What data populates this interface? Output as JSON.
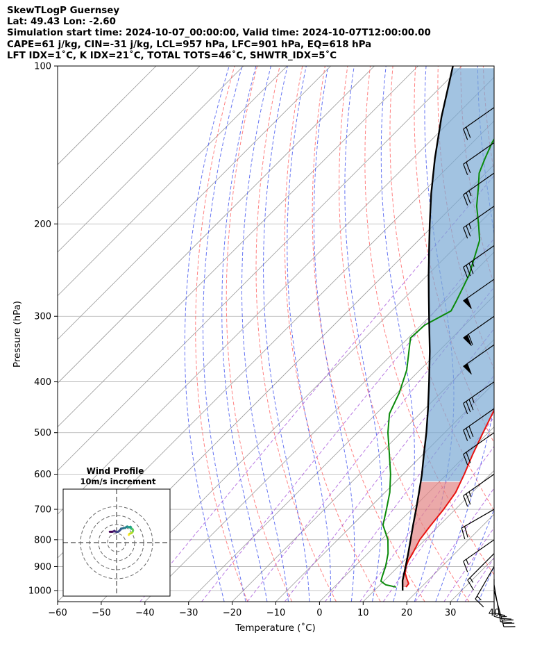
{
  "header": {
    "line1": "SkewTLogP Guernsey",
    "line2": "Lat: 49.43   Lon: -2.60",
    "line3": "Simulation start time: 2024-10-07_00:00:00, Valid time: 2024-10-07T12:00:00.00",
    "line4": "CAPE=61 j/kg, CIN=-31 j/kg, LCL=957 hPa, LFC=901 hPa, EQ=618 hPa",
    "line5": "LFT IDX=1˚C, K IDX=21˚C, TOTAL TOTS=46˚C, SHWTR_IDX=5˚C"
  },
  "chart_data": [
    {
      "type": "line",
      "title": "",
      "xlabel": "Temperature (˚C)",
      "ylabel": "Pressure (hPa)",
      "xlim": [
        -60,
        40
      ],
      "ylim": [
        1050,
        100
      ],
      "yscale": "log",
      "skew": "45",
      "x_ticks": [
        -60,
        -50,
        -40,
        -30,
        -20,
        -10,
        0,
        10,
        20,
        30,
        40
      ],
      "y_ticks": [
        100,
        200,
        300,
        400,
        500,
        600,
        700,
        800,
        900,
        1000
      ],
      "grid": true,
      "colors": {
        "temperature": "#e8120f",
        "dewpoint": "#0a8a0a",
        "parcel": "#000000",
        "cape_fill": "#7aa9d4",
        "cin_fill": "#e38585",
        "dry_adiabat": "#ff6b6b",
        "moist_adiabat": "#4a5cf0",
        "mixing_ratio": "#9a3fd6",
        "isotherm": "#999999"
      },
      "series": [
        {
          "key": "temperature",
          "values": [
            [
              985,
              16.5
            ],
            [
              970,
              16.3
            ],
            [
              950,
              14.8
            ],
            [
              925,
              13.0
            ],
            [
              900,
              11.8
            ],
            [
              875,
              10.9
            ],
            [
              850,
              10.3
            ],
            [
              800,
              8.8
            ],
            [
              750,
              8.0
            ],
            [
              700,
              7.3
            ],
            [
              650,
              6.2
            ],
            [
              600,
              4.0
            ],
            [
              550,
              1.4
            ],
            [
              500,
              -1.2
            ],
            [
              450,
              -4.0
            ],
            [
              400,
              -6.9
            ],
            [
              350,
              -9.8
            ],
            [
              300,
              -12.6
            ],
            [
              275,
              -16.0
            ],
            [
              250,
              -20.5
            ],
            [
              230,
              -25.4
            ],
            [
              210,
              -29.0
            ],
            [
              195,
              -33.0
            ],
            [
              180,
              -37.6
            ],
            [
              170,
              -41.0
            ],
            [
              160,
              -43.0
            ],
            [
              150,
              -45.0
            ],
            [
              140,
              -48.2
            ],
            [
              130,
              -52.0
            ],
            [
              120,
              -55.5
            ],
            [
              110,
              -59.0
            ],
            [
              100,
              -62.0
            ]
          ]
        },
        {
          "key": "dewpoint",
          "values": [
            [
              985,
              14.2
            ],
            [
              975,
              11.3
            ],
            [
              960,
              9.4
            ],
            [
              940,
              8.6
            ],
            [
              900,
              7.1
            ],
            [
              850,
              4.7
            ],
            [
              800,
              1.5
            ],
            [
              750,
              -3.0
            ],
            [
              700,
              -5.8
            ],
            [
              650,
              -8.9
            ],
            [
              600,
              -12.9
            ],
            [
              550,
              -17.7
            ],
            [
              500,
              -23.0
            ],
            [
              460,
              -27.0
            ],
            [
              420,
              -29.5
            ],
            [
              380,
              -33.0
            ],
            [
              330,
              -39.5
            ],
            [
              312,
              -39.2
            ],
            [
              293,
              -36.4
            ],
            [
              280,
              -37.5
            ],
            [
              250,
              -40.5
            ],
            [
              215,
              -46.0
            ],
            [
              200,
              -50.0
            ],
            [
              185,
              -54.5
            ],
            [
              170,
              -58.5
            ],
            [
              160,
              -61.5
            ],
            [
              150,
              -63.5
            ],
            [
              140,
              -65.5
            ],
            [
              130,
              -67.0
            ],
            [
              120,
              -68.5
            ],
            [
              110,
              -70.0
            ],
            [
              100,
              -71.5
            ]
          ]
        },
        {
          "key": "parcel",
          "values": [
            [
              1000,
              16.5
            ],
            [
              957,
              14.2
            ],
            [
              900,
              11.7
            ],
            [
              850,
              9.3
            ],
            [
              800,
              6.7
            ],
            [
              750,
              3.9
            ],
            [
              700,
              1.0
            ],
            [
              650,
              -2.2
            ],
            [
              618,
              -4.4
            ],
            [
              600,
              -5.7
            ],
            [
              550,
              -9.8
            ],
            [
              500,
              -14.2
            ],
            [
              450,
              -19.3
            ],
            [
              400,
              -25.2
            ],
            [
              350,
              -32.0
            ],
            [
              300,
              -40.2
            ],
            [
              275,
              -44.8
            ],
            [
              250,
              -49.8
            ],
            [
              225,
              -55.2
            ],
            [
              200,
              -61.2
            ],
            [
              175,
              -67.8
            ],
            [
              150,
              -75.0
            ],
            [
              125,
              -83.0
            ],
            [
              100,
              -92.0
            ]
          ]
        }
      ],
      "wind_barbs": [
        {
          "p": 1000,
          "speed_kt": 35,
          "dir_deg": 165
        },
        {
          "p": 975,
          "speed_kt": 25,
          "dir_deg": 170
        },
        {
          "p": 950,
          "speed_kt": 20,
          "dir_deg": 180
        },
        {
          "p": 900,
          "speed_kt": 15,
          "dir_deg": 210
        },
        {
          "p": 850,
          "speed_kt": 15,
          "dir_deg": 225
        },
        {
          "p": 800,
          "speed_kt": 15,
          "dir_deg": 235
        },
        {
          "p": 700,
          "speed_kt": 20,
          "dir_deg": 240
        },
        {
          "p": 600,
          "speed_kt": 25,
          "dir_deg": 235
        },
        {
          "p": 500,
          "speed_kt": 20,
          "dir_deg": 235
        },
        {
          "p": 450,
          "speed_kt": 30,
          "dir_deg": 235
        },
        {
          "p": 400,
          "speed_kt": 35,
          "dir_deg": 235
        },
        {
          "p": 340,
          "speed_kt": 50,
          "dir_deg": 235
        },
        {
          "p": 300,
          "speed_kt": 60,
          "dir_deg": 235
        },
        {
          "p": 255,
          "speed_kt": 50,
          "dir_deg": 235
        },
        {
          "p": 220,
          "speed_kt": 35,
          "dir_deg": 235
        },
        {
          "p": 185,
          "speed_kt": 25,
          "dir_deg": 235
        },
        {
          "p": 160,
          "speed_kt": 25,
          "dir_deg": 235
        },
        {
          "p": 140,
          "speed_kt": 20,
          "dir_deg": 235
        },
        {
          "p": 120,
          "speed_kt": 20,
          "dir_deg": 235
        }
      ]
    },
    {
      "type": "scatter",
      "title": "Wind Profile",
      "subtitle": "10m/s increment",
      "rings_ms": [
        10,
        20,
        30,
        40
      ],
      "hodograph_uv": [
        [
          13.5,
          8.5
        ],
        [
          14.0,
          9.5
        ],
        [
          15.0,
          10.0
        ],
        [
          16.5,
          10.5
        ],
        [
          17.5,
          11.5
        ],
        [
          18.0,
          12.5
        ],
        [
          18.2,
          13.5
        ],
        [
          18.0,
          14.5
        ],
        [
          17.5,
          15.0
        ],
        [
          16.5,
          15.3
        ],
        [
          15.5,
          16.0
        ],
        [
          16.0,
          16.8
        ],
        [
          15.5,
          17.5
        ],
        [
          13.5,
          17.0
        ],
        [
          12.0,
          17.8
        ],
        [
          11.0,
          17.5
        ],
        [
          9.5,
          16.2
        ],
        [
          8.5,
          16.3
        ],
        [
          7.0,
          15.8
        ],
        [
          5.0,
          15.5
        ],
        [
          4.5,
          14.5
        ],
        [
          3.5,
          13.5
        ],
        [
          2.5,
          12.5
        ],
        [
          1.5,
          12.0
        ],
        [
          0.0,
          11.8
        ],
        [
          -1.5,
          12.3
        ],
        [
          -2.5,
          13.0
        ],
        [
          -3.0,
          12.5
        ],
        [
          -5.0,
          12.0
        ],
        [
          -7.5,
          12.0
        ]
      ],
      "colormap": "viridis_r"
    }
  ]
}
